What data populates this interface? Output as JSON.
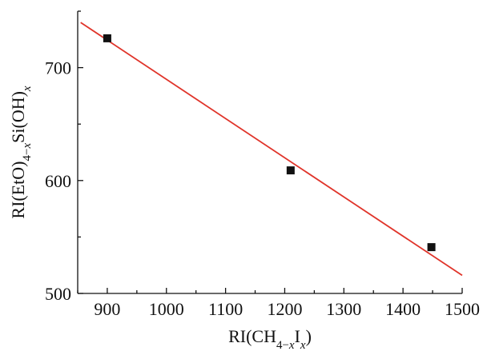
{
  "chart_data": {
    "type": "scatter",
    "xlabel": {
      "base": "RI(CH",
      "sub1": "4−",
      "sub1_italic": "x",
      "mid": "I",
      "sub2_italic": "x",
      "end": ")"
    },
    "ylabel": {
      "base": "RI(EtO)",
      "sub1": "4−",
      "sub1_italic": "x",
      "mid": "Si(OH)",
      "sub2_italic": "x"
    },
    "xlim": [
      850,
      1500
    ],
    "ylim": [
      500,
      750
    ],
    "xticks": [
      900,
      1000,
      1100,
      1200,
      1300,
      1400,
      1500
    ],
    "yticks": [
      500,
      600,
      700
    ],
    "grid": false,
    "series": [
      {
        "kind": "points",
        "marker": "square",
        "color": "#111111",
        "points": [
          {
            "x": 900,
            "y": 726
          },
          {
            "x": 1210,
            "y": 609
          },
          {
            "x": 1448,
            "y": 541
          }
        ]
      },
      {
        "kind": "fit-line",
        "color": "#e0342a",
        "points": [
          {
            "x": 855,
            "y": 740
          },
          {
            "x": 1500,
            "y": 516
          }
        ]
      }
    ]
  }
}
